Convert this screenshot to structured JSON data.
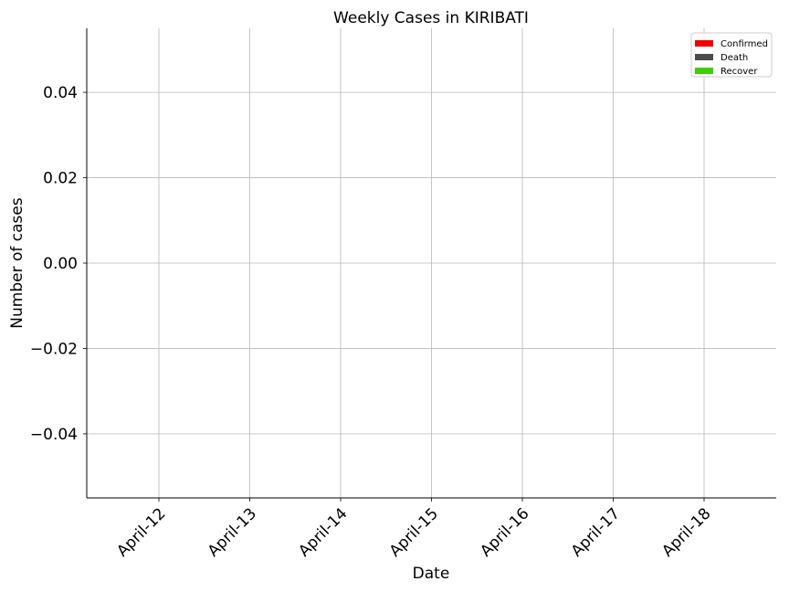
{
  "chart_data": {
    "type": "bar",
    "title": "Weekly Cases in KIRIBATI",
    "xlabel": "Date",
    "ylabel": "Number of cases",
    "categories": [
      "April-12",
      "April-13",
      "April-14",
      "April-15",
      "April-16",
      "April-17",
      "April-18"
    ],
    "series": [
      {
        "name": "Confirmed",
        "color": "#ee0000",
        "values": [
          0,
          0,
          0,
          0,
          0,
          0,
          0
        ]
      },
      {
        "name": "Death",
        "color": "#4c4c4c",
        "values": [
          0,
          0,
          0,
          0,
          0,
          0,
          0
        ]
      },
      {
        "name": "Recover",
        "color": "#44cc00",
        "values": [
          0,
          0,
          0,
          0,
          0,
          0,
          0
        ]
      }
    ],
    "ylim": [
      -0.055,
      0.055
    ],
    "yticks": [
      0.04,
      0.02,
      0.0,
      -0.02,
      -0.04
    ],
    "ytick_labels": [
      "0.04",
      "0.02",
      "0.00",
      "−0.02",
      "−0.04"
    ],
    "grid": true,
    "legend_position": "top-right"
  }
}
